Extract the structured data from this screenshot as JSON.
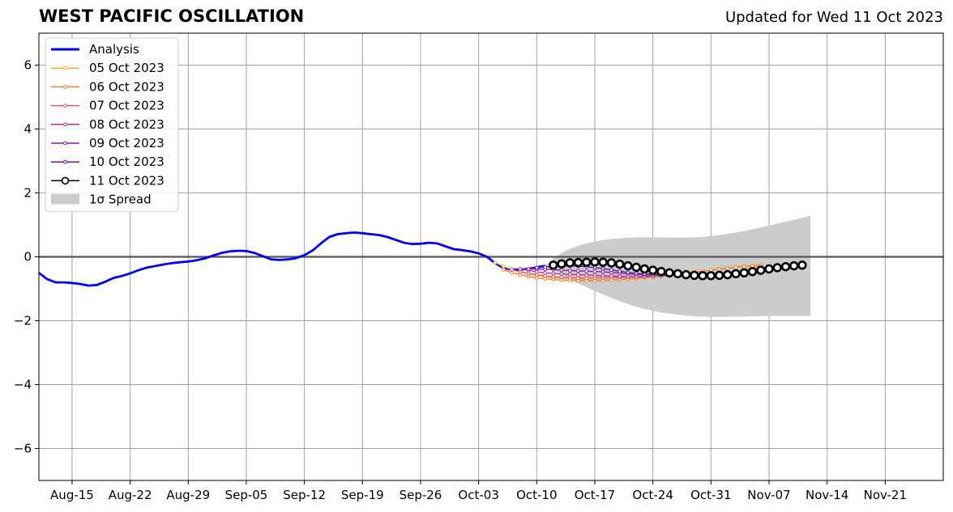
{
  "header": {
    "title": "WEST PACIFIC OSCILLATION",
    "updated": "Updated for Wed 11 Oct 2023"
  },
  "chart_data": {
    "type": "line",
    "title": "WEST PACIFIC OSCILLATION",
    "subtitle": "Updated for Wed 11 Oct 2023",
    "xlabel": "",
    "ylabel": "",
    "ylim": [
      -7,
      7
    ],
    "xlim": [
      "2023-08-11",
      "2023-11-28"
    ],
    "grid": true,
    "legend_position": "top-left",
    "x_ticks": [
      "Aug-15",
      "Aug-22",
      "Aug-29",
      "Sep-05",
      "Sep-12",
      "Sep-19",
      "Sep-26",
      "Oct-03",
      "Oct-10",
      "Oct-17",
      "Oct-24",
      "Oct-31",
      "Nov-07",
      "Nov-14",
      "Nov-21"
    ],
    "y_ticks": [
      "−6",
      "−4",
      "−2",
      "0",
      "2",
      "4",
      "6"
    ],
    "series": [
      {
        "name": "Analysis",
        "color": "#0000ee",
        "x": [
          "2023-08-11",
          "2023-08-12",
          "2023-08-13",
          "2023-08-14",
          "2023-08-15",
          "2023-08-16",
          "2023-08-17",
          "2023-08-18",
          "2023-08-19",
          "2023-08-20",
          "2023-08-21",
          "2023-08-22",
          "2023-08-23",
          "2023-08-24",
          "2023-08-25",
          "2023-08-26",
          "2023-08-27",
          "2023-08-28",
          "2023-08-29",
          "2023-08-30",
          "2023-08-31",
          "2023-09-01",
          "2023-09-02",
          "2023-09-03",
          "2023-09-04",
          "2023-09-05",
          "2023-09-06",
          "2023-09-07",
          "2023-09-08",
          "2023-09-09",
          "2023-09-10",
          "2023-09-11",
          "2023-09-12",
          "2023-09-13",
          "2023-09-14",
          "2023-09-15",
          "2023-09-16",
          "2023-09-17",
          "2023-09-18",
          "2023-09-19",
          "2023-09-20",
          "2023-09-21",
          "2023-09-22",
          "2023-09-23",
          "2023-09-24",
          "2023-09-25",
          "2023-09-26",
          "2023-09-27",
          "2023-09-28",
          "2023-09-29",
          "2023-09-30",
          "2023-10-01",
          "2023-10-02",
          "2023-10-03",
          "2023-10-04",
          "2023-10-05",
          "2023-10-06",
          "2023-10-07",
          "2023-10-08",
          "2023-10-09",
          "2023-10-10",
          "2023-10-11"
        ],
        "values": [
          -0.5,
          -0.7,
          -0.8,
          -0.8,
          -0.82,
          -0.85,
          -0.9,
          -0.88,
          -0.78,
          -0.66,
          -0.6,
          -0.52,
          -0.42,
          -0.34,
          -0.29,
          -0.24,
          -0.2,
          -0.17,
          -0.15,
          -0.11,
          -0.05,
          0.04,
          0.12,
          0.17,
          0.19,
          0.18,
          0.12,
          0.02,
          -0.08,
          -0.1,
          -0.08,
          -0.04,
          0.05,
          0.2,
          0.42,
          0.62,
          0.71,
          0.74,
          0.76,
          0.74,
          0.71,
          0.68,
          0.62,
          0.53,
          0.44,
          0.4,
          0.41,
          0.44,
          0.42,
          0.33,
          0.24,
          0.21,
          0.17,
          0.11,
          0.0,
          -0.2,
          -0.35,
          -0.4,
          -0.4,
          -0.38,
          -0.33,
          -0.28
        ]
      },
      {
        "name": "05 Oct 2023",
        "color": "#f5b22a",
        "start": "2023-10-05",
        "values": [
          -0.18,
          -0.3,
          -0.4,
          -0.47,
          -0.53,
          -0.58,
          -0.62,
          -0.65,
          -0.67,
          -0.69,
          -0.7,
          -0.71,
          -0.72,
          -0.72,
          -0.72,
          -0.71,
          -0.7,
          -0.68,
          -0.66,
          -0.63,
          -0.6,
          -0.57,
          -0.54,
          -0.51,
          -0.48,
          -0.45,
          -0.42,
          -0.38,
          -0.35,
          -0.32,
          -0.29,
          -0.27,
          -0.25
        ]
      },
      {
        "name": "06 Oct 2023",
        "color": "#f07f3c",
        "start": "2023-10-06",
        "values": [
          -0.4,
          -0.5,
          -0.56,
          -0.62,
          -0.66,
          -0.69,
          -0.71,
          -0.73,
          -0.74,
          -0.75,
          -0.75,
          -0.75,
          -0.74,
          -0.73,
          -0.71,
          -0.69,
          -0.67,
          -0.65,
          -0.62,
          -0.6,
          -0.57,
          -0.54,
          -0.51,
          -0.48,
          -0.45,
          -0.42,
          -0.39,
          -0.36,
          -0.33,
          -0.31,
          -0.29,
          -0.28
        ]
      },
      {
        "name": "07 Oct 2023",
        "color": "#e0566b",
        "start": "2023-10-07",
        "values": [
          -0.4,
          -0.47,
          -0.52,
          -0.56,
          -0.6,
          -0.62,
          -0.64,
          -0.65,
          -0.66,
          -0.66,
          -0.66,
          -0.66,
          -0.65,
          -0.64,
          -0.63,
          -0.62,
          -0.6,
          -0.58,
          -0.56,
          -0.55
        ]
      },
      {
        "name": "08 Oct 2023",
        "color": "#b1348a",
        "start": "2023-10-08",
        "values": [
          -0.38,
          -0.42,
          -0.47,
          -0.5,
          -0.52,
          -0.54,
          -0.55,
          -0.56,
          -0.57,
          -0.58,
          -0.59,
          -0.6,
          -0.61,
          -0.62,
          -0.62,
          -0.62,
          -0.61,
          -0.6,
          -0.59,
          -0.57
        ]
      },
      {
        "name": "09 Oct 2023",
        "color": "#8a1fa6",
        "start": "2023-10-09",
        "values": [
          -0.38,
          -0.38,
          -0.39,
          -0.4,
          -0.42,
          -0.43,
          -0.44,
          -0.45,
          -0.46,
          -0.47,
          -0.49,
          -0.51,
          -0.53,
          -0.55,
          -0.56,
          -0.56,
          -0.56,
          -0.55,
          -0.54
        ]
      },
      {
        "name": "10 Oct 2023",
        "color": "#5a14a8",
        "start": "2023-10-10",
        "values": [
          -0.34,
          -0.32,
          -0.3,
          -0.29,
          -0.28,
          -0.29,
          -0.31,
          -0.34,
          -0.37,
          -0.41,
          -0.45,
          -0.49,
          -0.52,
          -0.54,
          -0.55,
          -0.55,
          -0.55
        ]
      },
      {
        "name": "11 Oct 2023",
        "color": "#000000",
        "start": "2023-10-12",
        "values": [
          -0.26,
          -0.22,
          -0.19,
          -0.18,
          -0.17,
          -0.16,
          -0.17,
          -0.19,
          -0.23,
          -0.28,
          -0.33,
          -0.38,
          -0.42,
          -0.46,
          -0.5,
          -0.53,
          -0.56,
          -0.58,
          -0.59,
          -0.59,
          -0.58,
          -0.56,
          -0.53,
          -0.5,
          -0.46,
          -0.42,
          -0.38,
          -0.34,
          -0.31,
          -0.28,
          -0.26
        ]
      }
    ],
    "spread": {
      "name": "1σ Spread",
      "color": "#cccccc",
      "start": "2023-10-11",
      "upper": [
        -0.3,
        -0.05,
        0.12,
        0.25,
        0.34,
        0.42,
        0.48,
        0.53,
        0.56,
        0.58,
        0.6,
        0.61,
        0.61,
        0.61,
        0.61,
        0.6,
        0.6,
        0.6,
        0.61,
        0.62,
        0.65,
        0.68,
        0.72,
        0.76,
        0.81,
        0.86,
        0.92,
        0.98,
        1.04,
        1.1,
        1.16,
        1.22,
        1.29
      ],
      "lower": [
        -0.3,
        -0.42,
        -0.55,
        -0.7,
        -0.83,
        -0.95,
        -1.07,
        -1.18,
        -1.29,
        -1.39,
        -1.48,
        -1.56,
        -1.63,
        -1.69,
        -1.74,
        -1.78,
        -1.81,
        -1.84,
        -1.86,
        -1.87,
        -1.88,
        -1.88,
        -1.88,
        -1.87,
        -1.87,
        -1.86,
        -1.86,
        -1.85,
        -1.85,
        -1.85,
        -1.85,
        -1.85,
        -1.85
      ]
    }
  }
}
